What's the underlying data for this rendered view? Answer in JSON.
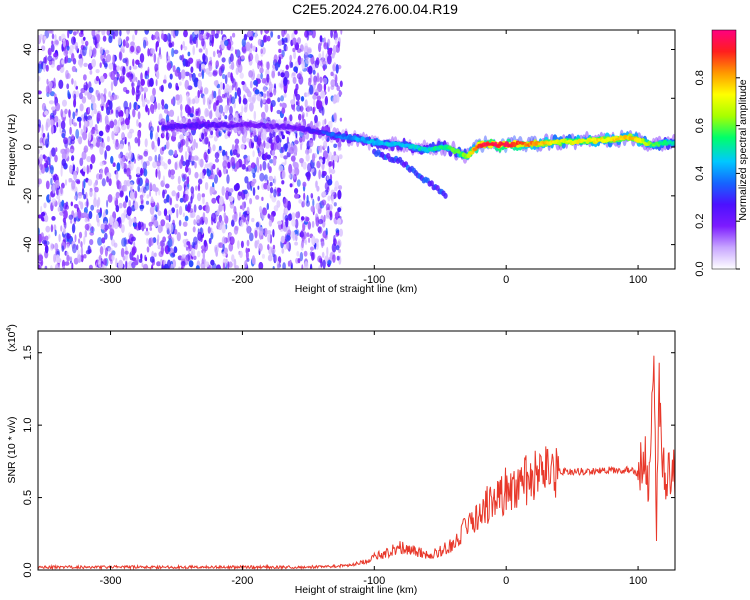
{
  "title": "C2E5.2024.276.00.04.R19",
  "chart_data": [
    {
      "type": "heatmap",
      "xlabel": "Height of straight line (km)",
      "ylabel": "Frequency (Hz)",
      "xlim": [
        -355,
        128
      ],
      "ylim": [
        -50,
        48
      ],
      "xticks": [
        -300,
        -200,
        -100,
        0,
        100
      ],
      "yticks": [
        -40,
        -20,
        0,
        20,
        40
      ],
      "grid": false,
      "colorbar": {
        "label": "Normalized spectral amplitude",
        "range": [
          0,
          1
        ],
        "ticks": [
          "0.0",
          "0.2",
          "0.4",
          "0.6",
          "0.8"
        ],
        "colormap": [
          "#ffffff",
          "#c8a6ff",
          "#7c1bff",
          "#4c11ff",
          "#1565ff",
          "#00c8ff",
          "#00ff6a",
          "#a8ff00",
          "#ffff00",
          "#ff9900",
          "#ff1e1e",
          "#ff0080"
        ]
      },
      "noise_region_x": [
        -355,
        -125
      ],
      "ridge": {
        "x": [
          -260,
          -230,
          -190,
          -160,
          -140,
          -120,
          -100,
          -80,
          -60,
          -45,
          -30,
          -20,
          0,
          40,
          80,
          95,
          110,
          128
        ],
        "y": [
          8,
          9,
          9,
          8,
          6,
          4,
          2,
          1,
          -1,
          0,
          -4,
          1,
          1,
          2,
          3,
          4,
          1,
          2
        ],
        "amplitude": [
          0.25,
          0.25,
          0.2,
          0.2,
          0.3,
          0.4,
          0.45,
          0.45,
          0.5,
          0.55,
          0.6,
          0.95,
          0.95,
          0.7,
          0.75,
          0.8,
          0.6,
          0.5
        ]
      },
      "secondary_branch": {
        "x": [
          -100,
          -80,
          -65,
          -55,
          -45
        ],
        "y": [
          -2,
          -6,
          -12,
          -16,
          -20
        ]
      }
    },
    {
      "type": "line",
      "xlabel": "Height of straight line (km)",
      "ylabel": "SNR (10 * v/v)",
      "multiplier": "(x10",
      "multiplier_exp": "4",
      "multiplier_close": ")",
      "xlim": [
        -355,
        128
      ],
      "ylim": [
        0,
        1.65
      ],
      "xticks": [
        -300,
        -200,
        -100,
        0,
        100
      ],
      "yticks": [
        "0.0",
        "0.5",
        "1.0",
        "1.5"
      ],
      "grid": false,
      "series": [
        {
          "color": "#e8382a",
          "x": [
            -355,
            -300,
            -250,
            -200,
            -150,
            -120,
            -110,
            -100,
            -90,
            -80,
            -70,
            -60,
            -50,
            -40,
            -30,
            -25,
            -20,
            -15,
            -10,
            0,
            10,
            20,
            30,
            40,
            60,
            80,
            95,
            100,
            105,
            108,
            110,
            112,
            114,
            116,
            118,
            120,
            124,
            128
          ],
          "y": [
            0.02,
            0.02,
            0.02,
            0.02,
            0.02,
            0.03,
            0.05,
            0.09,
            0.12,
            0.16,
            0.14,
            0.1,
            0.13,
            0.18,
            0.3,
            0.35,
            0.4,
            0.45,
            0.48,
            0.55,
            0.6,
            0.63,
            0.66,
            0.68,
            0.68,
            0.69,
            0.69,
            0.66,
            0.8,
            0.55,
            1.1,
            1.6,
            0.3,
            1.3,
            0.7,
            0.66,
            0.66,
            0.66
          ]
        }
      ]
    }
  ]
}
